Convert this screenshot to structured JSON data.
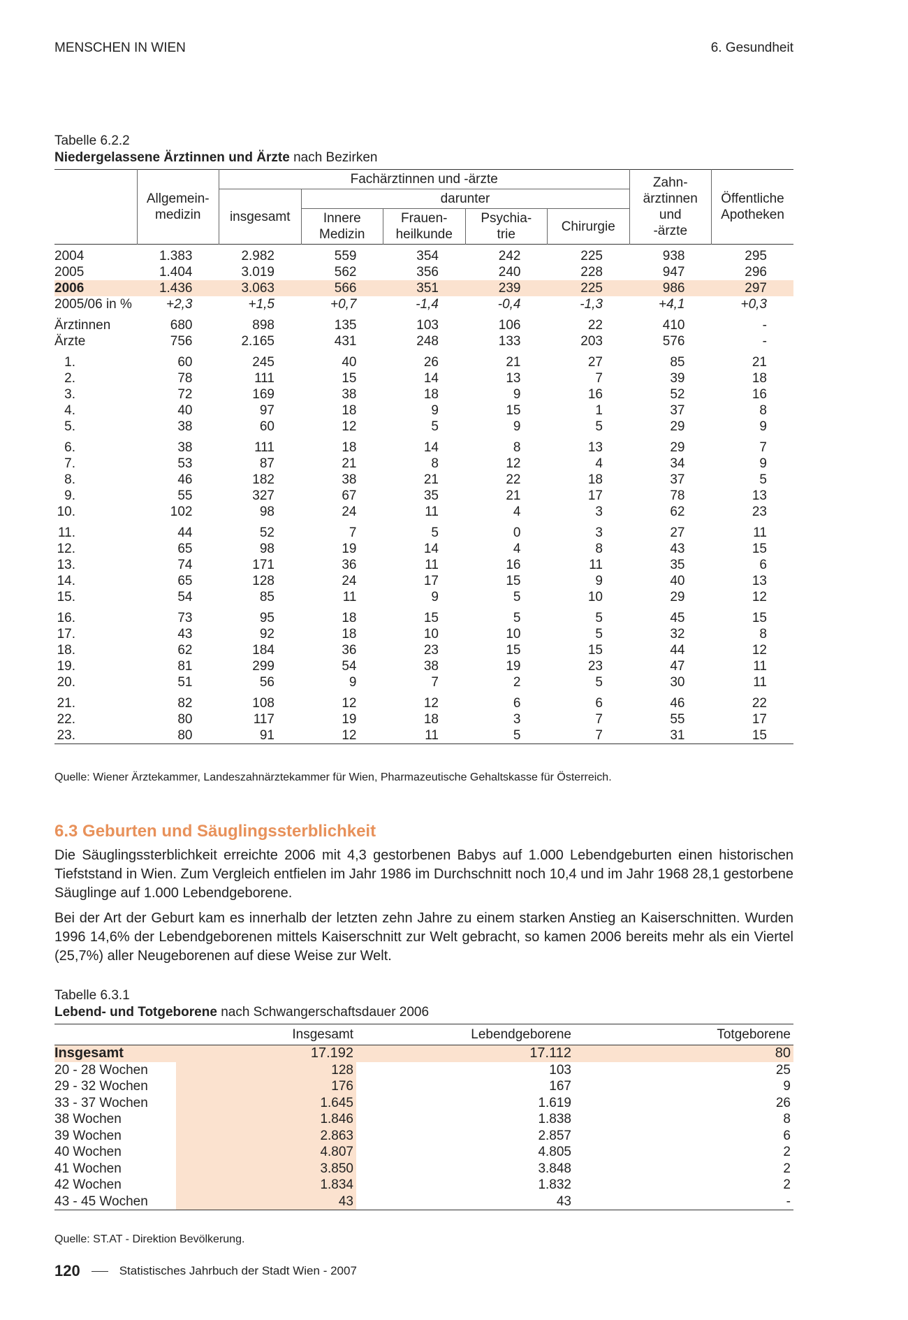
{
  "header": {
    "left": "MENSCHEN IN WIEN",
    "right": "6. Gesundheit"
  },
  "table1": {
    "label": "Tabelle 6.2.2",
    "title_bold": "Niedergelassene Ärztinnen und Ärzte",
    "title_rest": "nach Bezirken",
    "head": {
      "allgemein": [
        "Allgemein-",
        "medizin"
      ],
      "fach": "Fachärztinnen und -ärzte",
      "insgesamt": "insgesamt",
      "darunter": "darunter",
      "innere": [
        "Innere",
        "Medizin"
      ],
      "frauen": [
        "Frauen-",
        "heilkunde"
      ],
      "psych": [
        "Psychia-",
        "trie"
      ],
      "chirurgie": "Chirurgie",
      "zahn": [
        "Zahn-",
        "ärztinnen",
        "und",
        "-ärzte"
      ],
      "apotheken": [
        "Öffentliche",
        "Apotheken"
      ]
    },
    "groups": [
      [
        [
          "2004",
          "1.383",
          "2.982",
          "559",
          "354",
          "242",
          "225",
          "938",
          "295"
        ],
        [
          "2005",
          "1.404",
          "3.019",
          "562",
          "356",
          "240",
          "228",
          "947",
          "296"
        ],
        [
          "2006",
          "1.436",
          "3.063",
          "566",
          "351",
          "239",
          "225",
          "986",
          "297"
        ],
        [
          "2005/06 in %",
          "+2,3",
          "+1,5",
          "+0,7",
          "-1,4",
          "-0,4",
          "-1,3",
          "+4,1",
          "+0,3"
        ]
      ],
      [
        [
          "Ärztinnen",
          "680",
          "898",
          "135",
          "103",
          "106",
          "22",
          "410",
          "-"
        ],
        [
          "Ärzte",
          "756",
          "2.165",
          "431",
          "248",
          "133",
          "203",
          "576",
          "-"
        ]
      ],
      [
        [
          "1.",
          "60",
          "245",
          "40",
          "26",
          "21",
          "27",
          "85",
          "21"
        ],
        [
          "2.",
          "78",
          "111",
          "15",
          "14",
          "13",
          "7",
          "39",
          "18"
        ],
        [
          "3.",
          "72",
          "169",
          "38",
          "18",
          "9",
          "16",
          "52",
          "16"
        ],
        [
          "4.",
          "40",
          "97",
          "18",
          "9",
          "15",
          "1",
          "37",
          "8"
        ],
        [
          "5.",
          "38",
          "60",
          "12",
          "5",
          "9",
          "5",
          "29",
          "9"
        ]
      ],
      [
        [
          "6.",
          "38",
          "111",
          "18",
          "14",
          "8",
          "13",
          "29",
          "7"
        ],
        [
          "7.",
          "53",
          "87",
          "21",
          "8",
          "12",
          "4",
          "34",
          "9"
        ],
        [
          "8.",
          "46",
          "182",
          "38",
          "21",
          "22",
          "18",
          "37",
          "5"
        ],
        [
          "9.",
          "55",
          "327",
          "67",
          "35",
          "21",
          "17",
          "78",
          "13"
        ],
        [
          "10.",
          "102",
          "98",
          "24",
          "11",
          "4",
          "3",
          "62",
          "23"
        ]
      ],
      [
        [
          "11.",
          "44",
          "52",
          "7",
          "5",
          "0",
          "3",
          "27",
          "11"
        ],
        [
          "12.",
          "65",
          "98",
          "19",
          "14",
          "4",
          "8",
          "43",
          "15"
        ],
        [
          "13.",
          "74",
          "171",
          "36",
          "11",
          "16",
          "11",
          "35",
          "6"
        ],
        [
          "14.",
          "65",
          "128",
          "24",
          "17",
          "15",
          "9",
          "40",
          "13"
        ],
        [
          "15.",
          "54",
          "85",
          "11",
          "9",
          "5",
          "10",
          "29",
          "12"
        ]
      ],
      [
        [
          "16.",
          "73",
          "95",
          "18",
          "15",
          "5",
          "5",
          "45",
          "15"
        ],
        [
          "17.",
          "43",
          "92",
          "18",
          "10",
          "10",
          "5",
          "32",
          "8"
        ],
        [
          "18.",
          "62",
          "184",
          "36",
          "23",
          "15",
          "15",
          "44",
          "12"
        ],
        [
          "19.",
          "81",
          "299",
          "54",
          "38",
          "19",
          "23",
          "47",
          "11"
        ],
        [
          "20.",
          "51",
          "56",
          "9",
          "7",
          "2",
          "5",
          "30",
          "11"
        ]
      ],
      [
        [
          "21.",
          "82",
          "108",
          "12",
          "12",
          "6",
          "6",
          "46",
          "22"
        ],
        [
          "22.",
          "80",
          "117",
          "19",
          "18",
          "3",
          "7",
          "55",
          "17"
        ],
        [
          "23.",
          "80",
          "91",
          "12",
          "11",
          "5",
          "7",
          "31",
          "15"
        ]
      ]
    ],
    "source": "Quelle: Wiener Ärztekammer, Landeszahnärztekammer für Wien, Pharmazeutische Gehaltskasse für Österreich."
  },
  "section": {
    "heading": "6.3 Geburten und Säuglingssterblichkeit",
    "paragraphs": [
      "Die Säuglingssterblichkeit erreichte 2006 mit 4,3 gestorbenen Babys auf 1.000 Lebendgeburten einen historischen Tiefststand in Wien. Zum Vergleich entfielen im Jahr 1986 im Durchschnitt noch 10,4 und im Jahr 1968 28,1 gestorbene Säuglinge auf 1.000 Lebendgeborene.",
      "Bei der Art der Geburt kam es innerhalb der letzten zehn Jahre zu einem starken Anstieg an Kaiserschnitten. Wurden 1996 14,6% der Lebendgeborenen mittels Kaiserschnitt zur Welt gebracht, so kamen 2006 bereits mehr als ein Viertel (25,7%) aller Neugeborenen auf diese Weise zur Welt."
    ]
  },
  "table2": {
    "label": "Tabelle 6.3.1",
    "title_bold": "Lebend- und Totgeborene",
    "title_rest": "nach Schwangerschaftsdauer 2006",
    "columns": [
      "Insgesamt",
      "Lebendgeborene",
      "Totgeborene"
    ],
    "rows": [
      [
        "Insgesamt",
        "17.192",
        "17.112",
        "80"
      ],
      [
        "20 - 28 Wochen",
        "128",
        "103",
        "25"
      ],
      [
        "29 - 32 Wochen",
        "176",
        "167",
        "9"
      ],
      [
        "33 - 37 Wochen",
        "1.645",
        "1.619",
        "26"
      ],
      [
        "38 Wochen",
        "1.846",
        "1.838",
        "8"
      ],
      [
        "39 Wochen",
        "2.863",
        "2.857",
        "6"
      ],
      [
        "40 Wochen",
        "4.807",
        "4.805",
        "2"
      ],
      [
        "41 Wochen",
        "3.850",
        "3.848",
        "2"
      ],
      [
        "42 Wochen",
        "1.834",
        "1.832",
        "2"
      ],
      [
        "43 - 45 Wochen",
        "43",
        "43",
        "-"
      ]
    ],
    "source": "Quelle: ST.AT - Direktion Bevölkerung."
  },
  "footer": {
    "page": "120",
    "title": "Statistisches Jahrbuch der Stadt Wien - 2007"
  }
}
